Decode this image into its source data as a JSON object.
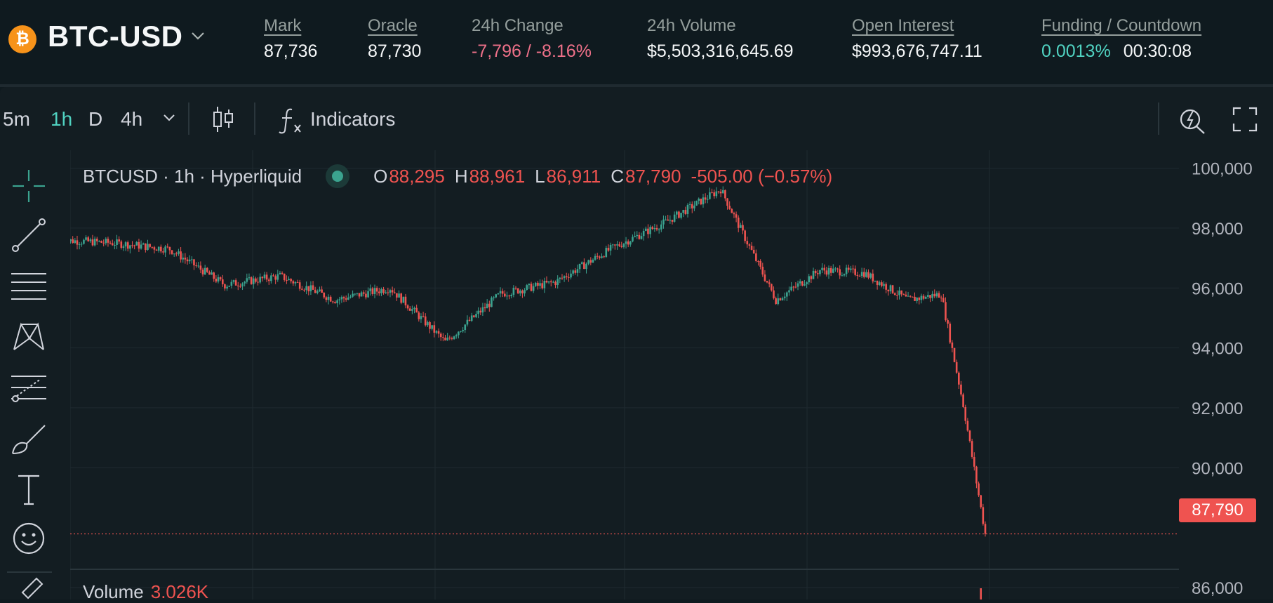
{
  "header": {
    "pair": "BTC-USD",
    "coin_icon": "bitcoin-icon",
    "brand_color": "#f7931a",
    "stats": {
      "mark": {
        "label": "Mark",
        "value": "87,736"
      },
      "oracle": {
        "label": "Oracle",
        "value": "87,730"
      },
      "change": {
        "label": "24h Change",
        "value": "-7,796 / -8.16%"
      },
      "volume": {
        "label": "24h Volume",
        "value": "$5,503,316,645.69"
      },
      "open_interest": {
        "label": "Open Interest",
        "value": "$993,676,747.11"
      },
      "funding": {
        "label": "Funding / Countdown",
        "rate": "0.0013%",
        "countdown": "00:30:08"
      }
    }
  },
  "toolbar": {
    "timeframes": [
      "5m",
      "1h",
      "D",
      "4h"
    ],
    "active_timeframe": "1h",
    "indicators_label": "Indicators",
    "icons": [
      "chevron-down-icon",
      "candlestick-icon",
      "function-icon",
      "quick-search-icon",
      "fullscreen-icon"
    ]
  },
  "drawing_tools": [
    "crosshair-icon",
    "trend-line-icon",
    "horizontal-lines-icon",
    "pattern-icon",
    "fib-icon",
    "brush-icon",
    "text-icon",
    "emoji-icon",
    "eraser-icon"
  ],
  "legend": {
    "symbol": "BTCUSD · 1h · Hyperliquid",
    "open_label": "O",
    "open": "88,295",
    "high_label": "H",
    "high": "88,961",
    "low_label": "L",
    "low": "86,911",
    "close_label": "C",
    "close": "87,790",
    "change": "-505.00 (−0.57%)"
  },
  "last_price": "87,790",
  "volume_legend": {
    "label": "Volume",
    "value": "3.026K"
  },
  "colors": {
    "up": "#3ba38f",
    "down": "#ef5350",
    "accent": "#50d2c1",
    "negative": "#ed7088"
  },
  "chart_data": {
    "type": "candlestick",
    "ylim": [
      85600,
      100600
    ],
    "y_ticks": [
      "100,000",
      "98,000",
      "96,000",
      "94,000",
      "92,000",
      "90,000",
      "86,000"
    ],
    "grid": true,
    "series": [
      {
        "x": [
          1,
          25,
          50,
          75,
          100,
          125,
          150,
          175,
          200,
          225,
          250,
          275,
          300,
          325,
          345,
          365,
          385,
          400,
          410,
          420
        ],
        "close": [
          97600,
          97500,
          97300,
          96100,
          96400,
          95600,
          96000,
          94200,
          95800,
          96200,
          97300,
          98200,
          99300,
          95600,
          96600,
          96500,
          95600,
          95800,
          92100,
          87790
        ]
      }
    ]
  }
}
